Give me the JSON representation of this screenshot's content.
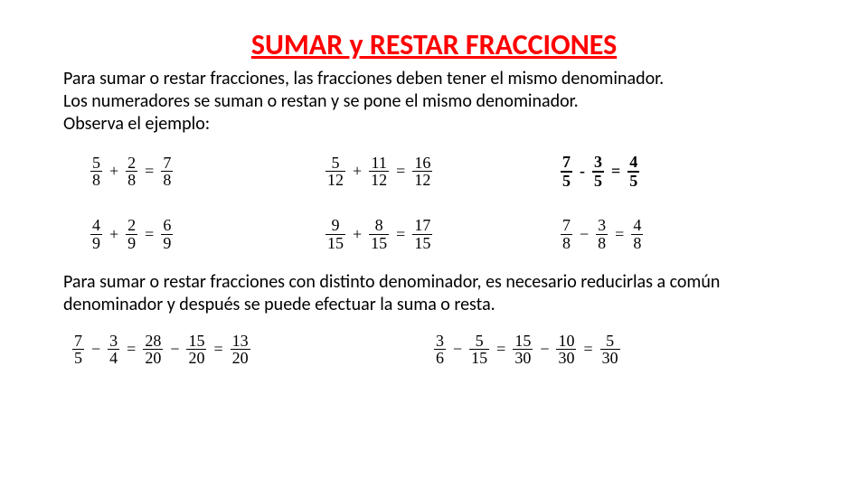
{
  "title": "SUMAR y RESTAR FRACCIONES",
  "title_color": "#ff0000",
  "paragraph1_line1": "Para sumar o restar fracciones, las fracciones deben tener el mismo denominador.",
  "paragraph1_line2": "Los numeradores se suman o restan y se pone el mismo denominador.",
  "paragraph1_line3": "Observa el ejemplo:",
  "paragraph2": "Para sumar o restar fracciones con distinto denominador, es necesario reducirlas a común denominador y después se puede efectuar la suma o resta.",
  "text_color": "#000000",
  "body_fontsize": 20,
  "math_fontsize": 18,
  "examples_same_denom": [
    {
      "a_n": "5",
      "a_d": "8",
      "op": "+",
      "b_n": "2",
      "b_d": "8",
      "r_n": "7",
      "r_d": "8",
      "bold": false
    },
    {
      "a_n": "5",
      "a_d": "12",
      "op": "+",
      "b_n": "11",
      "b_d": "12",
      "r_n": "16",
      "r_d": "12",
      "bold": false
    },
    {
      "a_n": "7",
      "a_d": "5",
      "op": "-",
      "b_n": "3",
      "b_d": "5",
      "r_n": "4",
      "r_d": "5",
      "bold": true
    },
    {
      "a_n": "4",
      "a_d": "9",
      "op": "+",
      "b_n": "2",
      "b_d": "9",
      "r_n": "6",
      "r_d": "9",
      "bold": false
    },
    {
      "a_n": "9",
      "a_d": "15",
      "op": "+",
      "b_n": "8",
      "b_d": "15",
      "r_n": "17",
      "r_d": "15",
      "bold": false
    },
    {
      "a_n": "7",
      "a_d": "8",
      "op": "−",
      "b_n": "3",
      "b_d": "8",
      "r_n": "4",
      "r_d": "8",
      "bold": false
    }
  ],
  "examples_diff_denom": [
    {
      "a_n": "7",
      "a_d": "5",
      "op": "−",
      "b_n": "3",
      "b_d": "4",
      "c_n": "28",
      "c_d": "20",
      "op2": "−",
      "dd_n": "15",
      "dd_d": "20",
      "r_n": "13",
      "r_d": "20"
    },
    {
      "a_n": "3",
      "a_d": "6",
      "op": "−",
      "b_n": "5",
      "b_d": "15",
      "c_n": "15",
      "c_d": "30",
      "op2": "−",
      "dd_n": "10",
      "dd_d": "30",
      "r_n": "5",
      "r_d": "30"
    }
  ]
}
